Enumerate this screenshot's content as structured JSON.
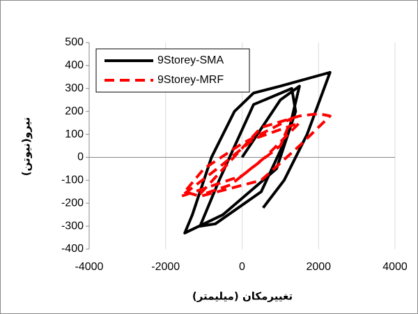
{
  "chart_data": {
    "type": "line",
    "xlabel": "تغییرمکان (میلیمتر)",
    "ylabel": "نیرو(نیوتن)",
    "xlim": [
      -4000,
      4000
    ],
    "xticks": [
      -4000,
      -2000,
      0,
      2000,
      4000
    ],
    "ylim": [
      -400,
      500
    ],
    "yticks": [
      -400,
      -300,
      -200,
      -100,
      0,
      100,
      200,
      300,
      400,
      500
    ],
    "grid": "x",
    "legend": "upper left",
    "series": [
      {
        "name": "9Storey-SMA",
        "color": "#000000",
        "dash": "solid",
        "x": [
          0,
          1000,
          1500,
          1200,
          500,
          -700,
          -1100,
          -600,
          300,
          1300,
          1400,
          900,
          -500,
          -1500,
          -1300,
          -800,
          -200,
          300,
          1000,
          2300,
          1700,
          1100,
          550
        ],
        "values": [
          0,
          250,
          310,
          100,
          -150,
          -290,
          -300,
          -100,
          230,
          300,
          200,
          -50,
          -250,
          -330,
          -250,
          0,
          200,
          280,
          310,
          370,
          100,
          -100,
          -220
        ]
      },
      {
        "name": "9Storey-MRF",
        "color": "#ff0000",
        "dash": "dashed",
        "x": [
          -1100,
          500,
          1500,
          2000,
          2300,
          1500,
          500,
          -1100,
          -1500,
          -1000,
          0,
          1300,
          1000,
          0,
          -1600,
          -1200,
          -500,
          300,
          1500,
          600,
          -300,
          -1000
        ],
        "values": [
          -160,
          130,
          180,
          190,
          180,
          50,
          -100,
          -170,
          -150,
          -50,
          60,
          170,
          50,
          -80,
          -170,
          -120,
          -30,
          80,
          150,
          0,
          -120,
          -160
        ]
      }
    ]
  }
}
